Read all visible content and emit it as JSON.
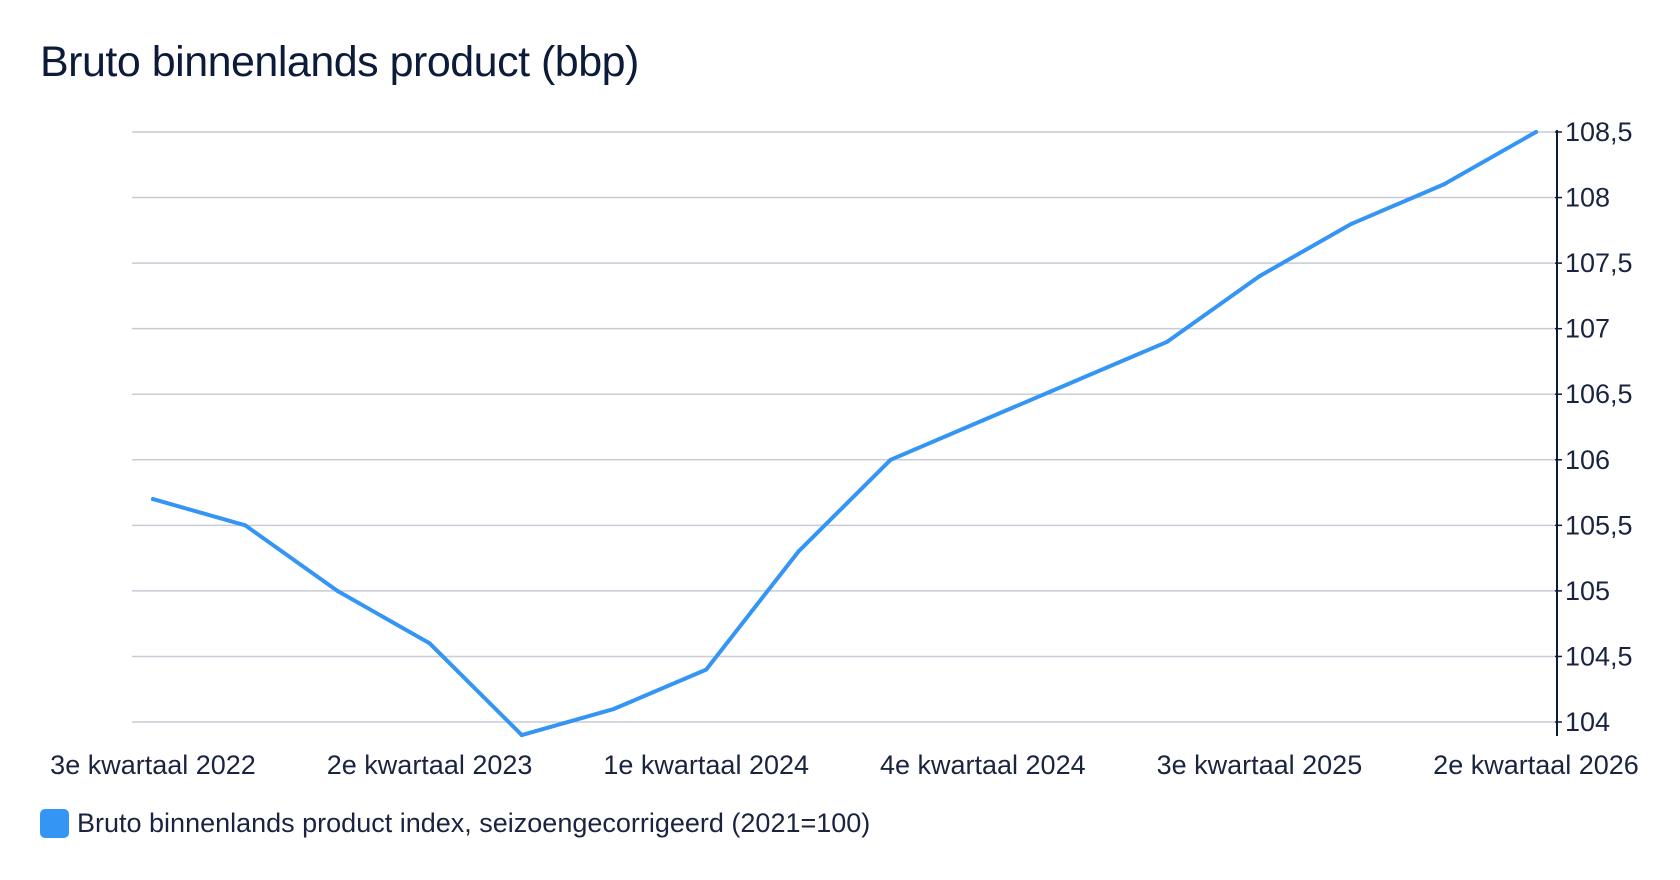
{
  "title": "Bruto binnenlands product (bbp)",
  "legend": {
    "label": "Bruto binnenlands product index, seizoengecorrigeerd (2021=100)"
  },
  "chart_data": {
    "type": "line",
    "title": "Bruto binnenlands product (bbp)",
    "xlabel": "",
    "ylabel": "",
    "ylim": [
      104,
      108.5
    ],
    "y_axis_side": "right",
    "grid": true,
    "legend_position": "bottom-left",
    "colors": {
      "line": "#3595f5",
      "grid": "#c8ccd6",
      "axis": "#0c1b3a"
    },
    "x_tick_labels": [
      "3e kwartaal 2022",
      "2e kwartaal 2023",
      "1e kwartaal 2024",
      "4e kwartaal 2024",
      "3e kwartaal 2025",
      "2e kwartaal 2026"
    ],
    "y_tick_labels": [
      "104",
      "104,5",
      "105",
      "105,5",
      "106",
      "106,5",
      "107",
      "107,5",
      "108",
      "108,5"
    ],
    "y_ticks": [
      104,
      104.5,
      105,
      105.5,
      106,
      106.5,
      107,
      107.5,
      108,
      108.5
    ],
    "series": [
      {
        "name": "Bruto binnenlands product index, seizoengecorrigeerd (2021=100)",
        "x": [
          "3e kwartaal 2022",
          "4e kwartaal 2022",
          "1e kwartaal 2023",
          "2e kwartaal 2023",
          "3e kwartaal 2023",
          "4e kwartaal 2023",
          "1e kwartaal 2024",
          "2e kwartaal 2024",
          "3e kwartaal 2024",
          "4e kwartaal 2024",
          "1e kwartaal 2025",
          "2e kwartaal 2025",
          "3e kwartaal 2025",
          "4e kwartaal 2025",
          "1e kwartaal 2026",
          "2e kwartaal 2026"
        ],
        "values": [
          105.7,
          105.5,
          105.0,
          104.6,
          103.9,
          104.1,
          104.4,
          105.3,
          106.0,
          106.3,
          106.6,
          106.9,
          107.4,
          107.8,
          108.1,
          108.5
        ]
      }
    ]
  }
}
